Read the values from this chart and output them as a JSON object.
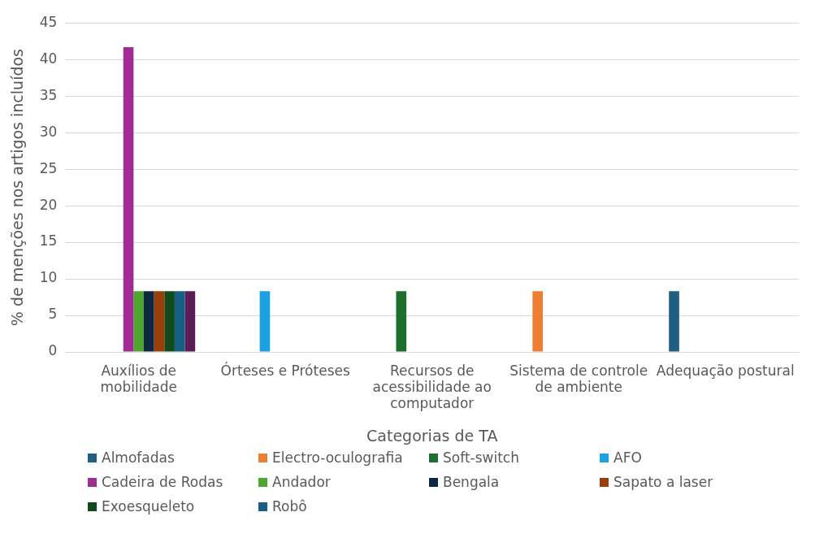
{
  "chart_data": {
    "type": "bar",
    "xlabel": "Categorias de TA",
    "ylabel": "% de menções nos artigos incluídos",
    "categories": [
      "Auxílios de mobilidade",
      "Órteses e Próteses",
      "Recursos de acessibilidade ao computador",
      "Sistema de controle de ambiente",
      "Adequação postural"
    ],
    "ylim": [
      0,
      45
    ],
    "yticks": [
      0,
      5,
      10,
      15,
      20,
      25,
      30,
      35,
      40,
      45
    ],
    "grid": "y",
    "legend": "bottom",
    "series": [
      {
        "name": "Almofadas",
        "color": "#215f80",
        "values": [
          null,
          null,
          null,
          null,
          8.3
        ]
      },
      {
        "name": "Electro-oculografia",
        "color": "#ed7d31",
        "values": [
          null,
          null,
          null,
          8.3,
          null
        ]
      },
      {
        "name": "Soft-switch",
        "color": "#1e6e2e",
        "values": [
          null,
          null,
          8.3,
          null,
          null
        ]
      },
      {
        "name": "AFO",
        "color": "#1ba1e2",
        "values": [
          null,
          8.3,
          null,
          null,
          null
        ]
      },
      {
        "name": "Cadeira de Rodas",
        "color": "#a02b93",
        "values": [
          41.7,
          null,
          null,
          null,
          null
        ]
      },
      {
        "name": "Andador",
        "color": "#4ea72e",
        "values": [
          8.3,
          null,
          null,
          null,
          null
        ]
      },
      {
        "name": "Bengala",
        "color": "#0e2841",
        "values": [
          8.3,
          null,
          null,
          null,
          null
        ]
      },
      {
        "name": "Sapato a laser",
        "color": "#9b3f0a",
        "values": [
          8.3,
          null,
          null,
          null,
          null
        ]
      },
      {
        "name": "Exoesqueleto",
        "color": "#124a1c",
        "values": [
          8.3,
          null,
          null,
          null,
          null
        ]
      },
      {
        "name": "Robô",
        "color": "#156082",
        "values": [
          8.3,
          null,
          null,
          null,
          null
        ]
      },
      {
        "color": "#5c1d56",
        "values": [
          8.3,
          null,
          null,
          null,
          null
        ]
      }
    ]
  }
}
